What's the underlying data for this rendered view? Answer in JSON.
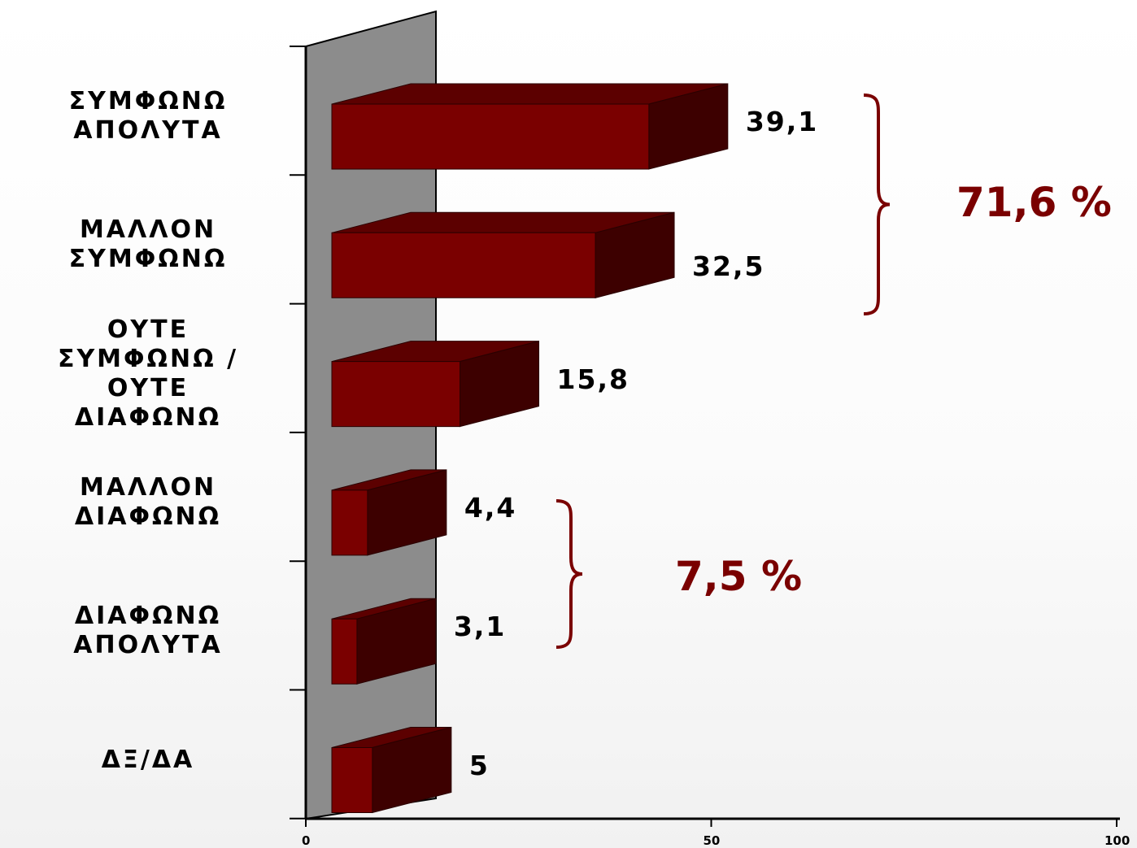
{
  "chart_data": {
    "type": "bar",
    "orientation": "horizontal",
    "style": "3d",
    "categories": [
      [
        "ΣΥΜΦΩΝΩ",
        "ΑΠΟΛΥΤΑ"
      ],
      [
        "ΜΑΛΛΟΝ",
        "ΣΥΜΦΩΝΩ"
      ],
      [
        "ΟΥΤΕ",
        "ΣΥΜΦΩΝΩ /",
        "ΟΥΤΕ",
        "ΔΙΑΦΩΝΩ"
      ],
      [
        "ΜΑΛΛΟΝ",
        "ΔΙΑΦΩΝΩ"
      ],
      [
        "ΔΙΑΦΩΝΩ",
        "ΑΠΟΛΥΤΑ"
      ],
      [
        "ΔΞ/ΔΑ"
      ]
    ],
    "values": [
      39.1,
      32.5,
      15.8,
      4.4,
      3.1,
      5
    ],
    "value_labels": [
      "39,1",
      "32,5",
      "15,8",
      "4,4",
      "3,1",
      "5"
    ],
    "xlim": [
      0,
      100
    ],
    "x_ticks": [
      "0",
      "50",
      "100"
    ],
    "grid": false,
    "colors": {
      "bar_front": "#7a0000",
      "bar_top": "#5c0000",
      "bar_side": "#3d0000",
      "wall": "#8c8c8c",
      "annotation": "#7a0000"
    },
    "annotations": [
      {
        "type": "brace",
        "covers": [
          0,
          1
        ],
        "label": "71,6 %"
      },
      {
        "type": "brace",
        "covers": [
          3,
          4
        ],
        "label": "7,5 %"
      }
    ]
  }
}
